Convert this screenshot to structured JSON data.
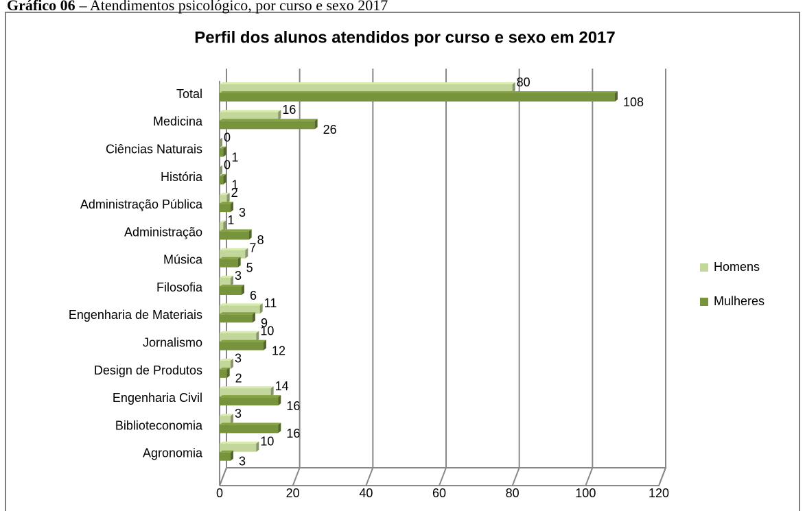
{
  "caption": {
    "label": "Gráfico 06",
    "text": "– Atendimentos psicológico, por curso e sexo 2017"
  },
  "chart_data": {
    "type": "bar",
    "orientation": "horizontal",
    "title": "Perfil dos alunos atendidos por curso e sexo em 2017",
    "categories": [
      "Total",
      "Medicina",
      "Ciências Naturais",
      "História",
      "Administração Pública",
      "Administração",
      "Música",
      "Filosofia",
      "Engenharia de Materiais",
      "Jornalismo",
      "Design de Produtos",
      "Engenharia Civil",
      "Biblioteconomia",
      "Agronomia"
    ],
    "series": [
      {
        "name": "Homens",
        "color": "#c3d69b",
        "values": [
          80,
          16,
          0,
          0,
          2,
          1,
          7,
          3,
          11,
          10,
          3,
          14,
          3,
          10
        ]
      },
      {
        "name": "Mulheres",
        "color": "#77933c",
        "values": [
          108,
          26,
          1,
          1,
          3,
          8,
          5,
          6,
          9,
          12,
          2,
          16,
          16,
          3
        ]
      }
    ],
    "xlim": [
      0,
      120
    ],
    "xticks": [
      0,
      20,
      40,
      60,
      80,
      100,
      120
    ],
    "grid": true,
    "legend": "right"
  }
}
